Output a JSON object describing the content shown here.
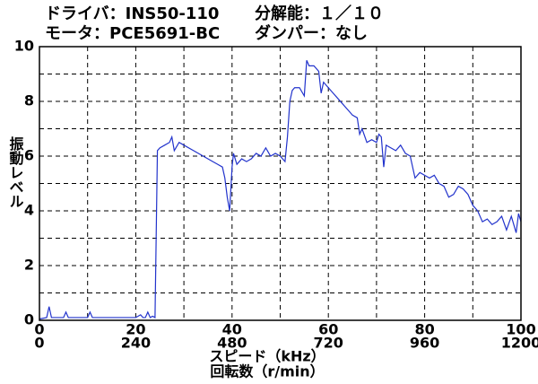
{
  "chart_data": {
    "type": "line",
    "annotations": [
      "ドライバ：INS50-110",
      "分解能：１／１０",
      "モータ：PCE5691-BC",
      "ダンパー：なし"
    ],
    "xlabel": "スピード（kHz）",
    "x2label": "回転数（r/min）",
    "ylabel": "振動レベル",
    "color": "#2233cc",
    "xlim": [
      0,
      100
    ],
    "xticks": [
      0,
      20,
      40,
      60,
      80,
      100
    ],
    "xminor": [
      10,
      30,
      50,
      70,
      90
    ],
    "x2lim": [
      0,
      1200
    ],
    "x2ticks": [
      0,
      240,
      480,
      720,
      960,
      1200
    ],
    "ylim": [
      0,
      10
    ],
    "yticks": [
      0,
      2,
      4,
      6,
      8,
      10
    ],
    "yminor": [
      1,
      3,
      5,
      7,
      9
    ],
    "grid": true,
    "x": [
      0,
      1.5,
      2,
      2.5,
      5,
      5.5,
      6,
      10,
      10.5,
      11,
      20,
      21,
      21.5,
      22,
      22.5,
      23,
      23.5,
      24,
      24.5,
      25,
      26,
      27,
      27.5,
      28,
      29,
      30,
      32,
      34,
      36,
      37,
      38,
      38.5,
      39,
      39.5,
      40,
      40.3,
      41,
      42,
      43,
      44,
      45,
      46,
      47,
      48,
      49,
      50,
      51,
      51.5,
      52,
      52.5,
      53,
      54,
      55,
      55.5,
      56,
      57,
      58,
      58.5,
      59,
      60,
      61,
      62,
      63,
      64,
      65,
      66,
      66.5,
      67,
      68,
      69,
      70,
      70.5,
      71,
      71.5,
      72,
      73,
      74,
      75,
      76,
      77,
      78,
      79,
      80,
      81,
      82,
      83,
      84,
      85,
      86,
      87,
      88,
      89,
      90,
      91,
      92,
      93,
      94,
      95,
      96,
      97,
      98,
      99,
      99.5,
      100
    ],
    "values": [
      0.05,
      0.1,
      0.5,
      0.1,
      0.1,
      0.3,
      0.1,
      0.1,
      0.3,
      0.1,
      0.1,
      0.2,
      0.1,
      0.1,
      0.3,
      0.1,
      0.15,
      0.1,
      6.2,
      6.3,
      6.4,
      6.5,
      6.7,
      6.2,
      6.5,
      6.4,
      6.2,
      6.0,
      5.8,
      5.7,
      5.6,
      5.2,
      4.5,
      4.0,
      5.6,
      6.1,
      5.7,
      5.9,
      5.8,
      5.9,
      6.1,
      6.0,
      6.3,
      6.0,
      6.1,
      6.0,
      5.8,
      6.7,
      8.0,
      8.4,
      8.5,
      8.5,
      8.2,
      9.5,
      9.3,
      9.3,
      9.1,
      8.3,
      8.7,
      8.5,
      8.3,
      8.1,
      7.9,
      7.7,
      7.5,
      7.4,
      6.8,
      7.0,
      6.5,
      6.6,
      6.5,
      6.8,
      6.7,
      5.6,
      6.4,
      6.3,
      6.2,
      6.4,
      6.1,
      6.0,
      5.2,
      5.4,
      5.3,
      5.2,
      5.3,
      5.0,
      4.9,
      4.5,
      4.6,
      4.9,
      4.8,
      4.6,
      4.2,
      4.0,
      3.6,
      3.7,
      3.5,
      3.6,
      3.8,
      3.3,
      3.8,
      3.2,
      3.9,
      3.6
    ]
  }
}
